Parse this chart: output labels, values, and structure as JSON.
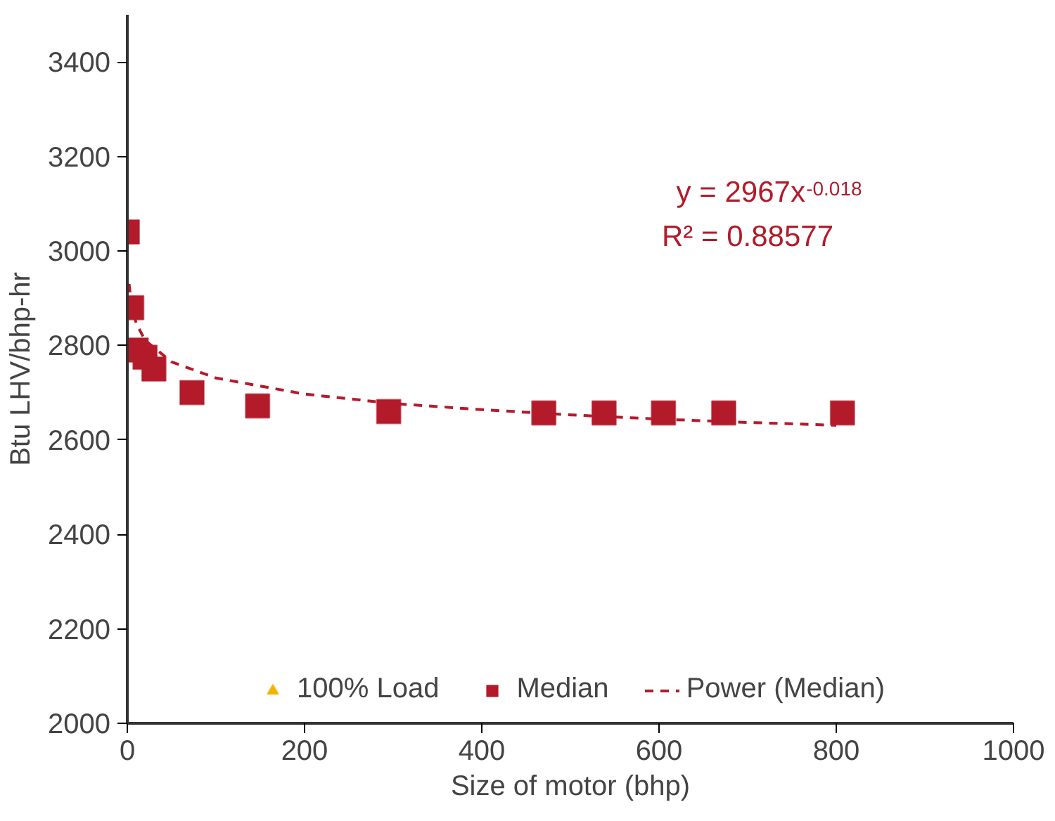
{
  "chart_data": {
    "type": "scatter",
    "xlabel": "Size of motor (bhp)",
    "ylabel": "Btu LHV/bhp-hr",
    "xlim": [
      0,
      1000
    ],
    "xticks": [
      0,
      200,
      400,
      600,
      800,
      1000
    ],
    "ylim": [
      2000,
      3500
    ],
    "yticks": [
      2000,
      2200,
      2400,
      2600,
      2800,
      3000,
      3200,
      3400
    ],
    "grid": false,
    "legend": "bottom",
    "annotations": [
      "y = 2967x$^{-0.018}$",
      "R² = 0.88577"
    ],
    "series": [
      {
        "name": "100% Load",
        "type": "scatter",
        "marker": "triangle",
        "color": "#f0b400"
      },
      {
        "name": "Median",
        "marker": "square",
        "color": "#b31b2b",
        "x": [
          0,
          5,
          10,
          20,
          30,
          73,
          147,
          295,
          470,
          538,
          605,
          673,
          807
        ],
        "values": [
          3040,
          2880,
          2790,
          2775,
          2750,
          2700,
          2672,
          2660,
          2657,
          2657,
          2657,
          2657,
          2657
        ]
      },
      {
        "name": "Power (Median)",
        "type": "line",
        "line_style": "dashed",
        "color": "#b31b2b",
        "x": [
          2,
          5,
          10,
          20,
          50,
          100,
          200,
          300,
          400,
          500,
          600,
          700,
          800
        ],
        "values": [
          2930,
          2882,
          2847,
          2811,
          2765,
          2731,
          2697,
          2677,
          2664,
          2653,
          2644,
          2637,
          2631
        ]
      }
    ]
  }
}
